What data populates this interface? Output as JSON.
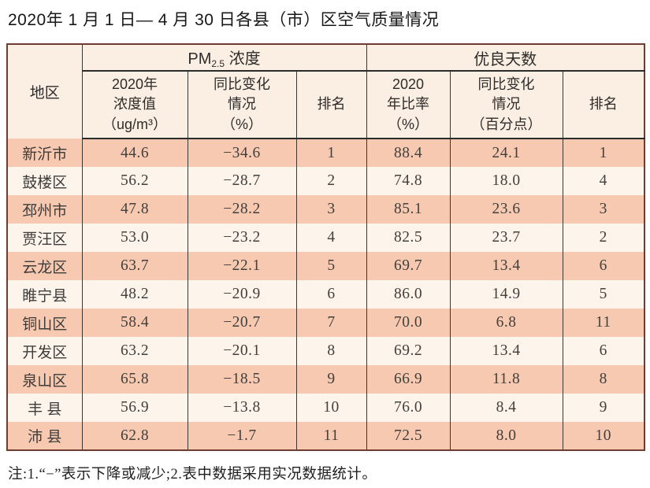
{
  "page": {
    "title": "2020年 1 月 1 日— 4 月 30 日各县（市）区空气质量情况",
    "note": "注:1.“−”表示下降或减少;2.表中数据采用实况数据统计。"
  },
  "colors": {
    "outer_border": "#6e3c30",
    "grid_line": "#3a3632",
    "heavy_line": "#2b2b2b",
    "header_bg": "#fbeee3",
    "row_odd_bg": "#f7c9b1",
    "row_even_bg": "#fdf4ec"
  },
  "table": {
    "header": {
      "region": "地区",
      "pm_main": "PM",
      "pm_sub": "2.5",
      "pm_suffix": " 浓度",
      "days_group": "优良天数",
      "pm_value": "2020年\n浓度值\n（ug/m³）",
      "pm_change": "同比变化\n情况\n（%）",
      "pm_rank": "排名",
      "days_ratio": "2020\n年比率\n（%）",
      "days_change": "同比变化\n情况\n（百分点）",
      "days_rank": "排名"
    },
    "rows": [
      {
        "region": "新沂市",
        "pm_value": "44.6",
        "pm_change": "−34.6",
        "pm_rank": "1",
        "days_ratio": "88.4",
        "days_change": "24.1",
        "days_rank": "1"
      },
      {
        "region": "鼓楼区",
        "pm_value": "56.2",
        "pm_change": "−28.7",
        "pm_rank": "2",
        "days_ratio": "74.8",
        "days_change": "18.0",
        "days_rank": "4"
      },
      {
        "region": "邳州市",
        "pm_value": "47.8",
        "pm_change": "−28.2",
        "pm_rank": "3",
        "days_ratio": "85.1",
        "days_change": "23.6",
        "days_rank": "3"
      },
      {
        "region": "贾汪区",
        "pm_value": "53.0",
        "pm_change": "−23.2",
        "pm_rank": "4",
        "days_ratio": "82.5",
        "days_change": "23.7",
        "days_rank": "2"
      },
      {
        "region": "云龙区",
        "pm_value": "63.7",
        "pm_change": "−22.1",
        "pm_rank": "5",
        "days_ratio": "69.7",
        "days_change": "13.4",
        "days_rank": "6"
      },
      {
        "region": "睢宁县",
        "pm_value": "48.2",
        "pm_change": "−20.9",
        "pm_rank": "6",
        "days_ratio": "86.0",
        "days_change": "14.9",
        "days_rank": "5"
      },
      {
        "region": "铜山区",
        "pm_value": "58.4",
        "pm_change": "−20.7",
        "pm_rank": "7",
        "days_ratio": "70.0",
        "days_change": "6.8",
        "days_rank": "11"
      },
      {
        "region": "开发区",
        "pm_value": "63.2",
        "pm_change": "−20.1",
        "pm_rank": "8",
        "days_ratio": "69.2",
        "days_change": "13.4",
        "days_rank": "6"
      },
      {
        "region": "泉山区",
        "pm_value": "65.8",
        "pm_change": "−18.5",
        "pm_rank": "9",
        "days_ratio": "66.9",
        "days_change": "11.8",
        "days_rank": "8"
      },
      {
        "region": "丰 县",
        "pm_value": "56.9",
        "pm_change": "−13.8",
        "pm_rank": "10",
        "days_ratio": "76.0",
        "days_change": "8.4",
        "days_rank": "9"
      },
      {
        "region": "沛 县",
        "pm_value": "62.8",
        "pm_change": "−1.7",
        "pm_rank": "11",
        "days_ratio": "72.5",
        "days_change": "8.0",
        "days_rank": "10"
      }
    ]
  }
}
